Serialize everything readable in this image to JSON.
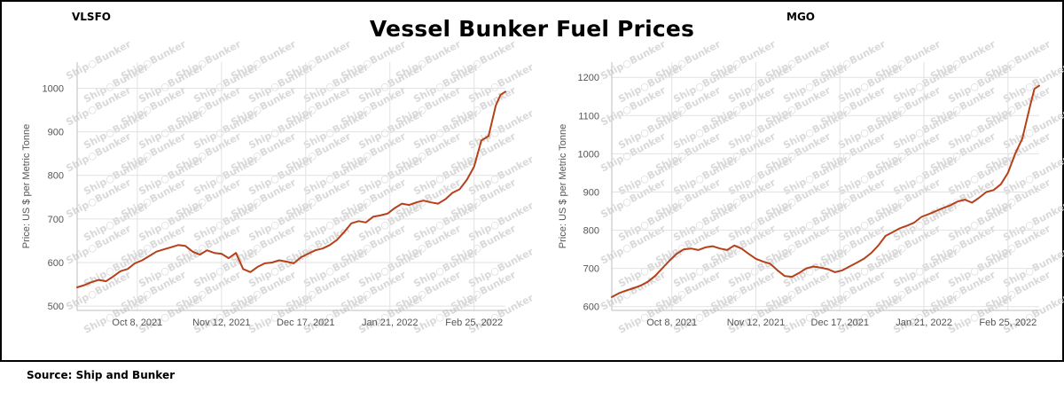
{
  "page": {
    "title": "Vessel Bunker Fuel Prices",
    "source": "Source: Ship and Bunker"
  },
  "colors": {
    "line": "#b5401a",
    "grid": "#e2e2e2",
    "text": "#555555"
  },
  "watermark": "Ship○Bunker",
  "chart_data": [
    {
      "type": "line",
      "title": "VLSFO",
      "ylabel": "Price: US $ per Metric Tonne",
      "ylim": [
        490,
        1060
      ],
      "yticks": [
        500,
        600,
        700,
        800,
        900,
        1000
      ],
      "xlim": [
        "2021-09-13",
        "2022-03-10"
      ],
      "xticks": [
        {
          "date": "2021-10-08",
          "label": "Oct 8, 2021"
        },
        {
          "date": "2021-11-12",
          "label": "Nov 12, 2021"
        },
        {
          "date": "2021-12-17",
          "label": "Dec 17, 2021"
        },
        {
          "date": "2022-01-21",
          "label": "Jan 21, 2022"
        },
        {
          "date": "2022-02-25",
          "label": "Feb 25, 2022"
        }
      ],
      "grid": true,
      "series": [
        {
          "x": [
            "2021-09-13",
            "2021-09-16",
            "2021-09-19",
            "2021-09-22",
            "2021-09-25",
            "2021-09-28",
            "2021-10-01",
            "2021-10-04",
            "2021-10-07",
            "2021-10-10",
            "2021-10-13",
            "2021-10-16",
            "2021-10-19",
            "2021-10-22",
            "2021-10-25",
            "2021-10-28",
            "2021-10-31",
            "2021-11-03",
            "2021-11-06",
            "2021-11-09",
            "2021-11-12",
            "2021-11-15",
            "2021-11-18",
            "2021-11-21",
            "2021-11-24",
            "2021-11-27",
            "2021-11-30",
            "2021-12-03",
            "2021-12-06",
            "2021-12-09",
            "2021-12-12",
            "2021-12-15",
            "2021-12-18",
            "2021-12-21",
            "2021-12-24",
            "2021-12-27",
            "2021-12-30",
            "2022-01-02",
            "2022-01-05",
            "2022-01-08",
            "2022-01-11",
            "2022-01-14",
            "2022-01-17",
            "2022-01-20",
            "2022-01-23",
            "2022-01-26",
            "2022-01-29",
            "2022-02-01",
            "2022-02-04",
            "2022-02-07",
            "2022-02-10",
            "2022-02-13",
            "2022-02-16",
            "2022-02-19",
            "2022-02-22",
            "2022-02-25",
            "2022-02-28",
            "2022-03-03",
            "2022-03-06",
            "2022-03-08",
            "2022-03-10"
          ],
          "y": [
            543,
            548,
            555,
            560,
            557,
            568,
            580,
            585,
            598,
            605,
            615,
            625,
            630,
            635,
            640,
            638,
            625,
            618,
            628,
            622,
            620,
            610,
            622,
            585,
            578,
            590,
            598,
            600,
            605,
            602,
            598,
            612,
            620,
            628,
            632,
            640,
            652,
            670,
            690,
            695,
            692,
            705,
            708,
            712,
            725,
            735,
            732,
            738,
            742,
            738,
            735,
            745,
            760,
            768,
            790,
            820,
            880,
            890,
            960,
            985,
            992
          ]
        }
      ]
    },
    {
      "type": "line",
      "title": "MGO",
      "ylabel": "Price: US $ per Metric Tonne",
      "ylim": [
        590,
        1240
      ],
      "yticks": [
        600,
        700,
        800,
        900,
        1000,
        1100,
        1200
      ],
      "xlim": [
        "2021-09-13",
        "2022-03-10"
      ],
      "xticks": [
        {
          "date": "2021-10-08",
          "label": "Oct 8, 2021"
        },
        {
          "date": "2021-11-12",
          "label": "Nov 12, 2021"
        },
        {
          "date": "2021-12-17",
          "label": "Dec 17, 2021"
        },
        {
          "date": "2022-01-21",
          "label": "Jan 21, 2022"
        },
        {
          "date": "2022-02-25",
          "label": "Feb 25, 2022"
        }
      ],
      "grid": true,
      "series": [
        {
          "x": [
            "2021-09-13",
            "2021-09-16",
            "2021-09-19",
            "2021-09-22",
            "2021-09-25",
            "2021-09-28",
            "2021-10-01",
            "2021-10-04",
            "2021-10-07",
            "2021-10-10",
            "2021-10-13",
            "2021-10-16",
            "2021-10-19",
            "2021-10-22",
            "2021-10-25",
            "2021-10-28",
            "2021-10-31",
            "2021-11-03",
            "2021-11-06",
            "2021-11-09",
            "2021-11-12",
            "2021-11-15",
            "2021-11-18",
            "2021-11-21",
            "2021-11-24",
            "2021-11-27",
            "2021-11-30",
            "2021-12-03",
            "2021-12-06",
            "2021-12-09",
            "2021-12-12",
            "2021-12-15",
            "2021-12-18",
            "2021-12-21",
            "2021-12-24",
            "2021-12-27",
            "2021-12-30",
            "2022-01-02",
            "2022-01-05",
            "2022-01-08",
            "2022-01-11",
            "2022-01-14",
            "2022-01-17",
            "2022-01-20",
            "2022-01-23",
            "2022-01-26",
            "2022-01-29",
            "2022-02-01",
            "2022-02-04",
            "2022-02-07",
            "2022-02-10",
            "2022-02-13",
            "2022-02-16",
            "2022-02-19",
            "2022-02-22",
            "2022-02-25",
            "2022-02-28",
            "2022-03-03",
            "2022-03-06",
            "2022-03-08",
            "2022-03-10"
          ],
          "y": [
            625,
            635,
            642,
            648,
            655,
            665,
            680,
            700,
            720,
            738,
            750,
            752,
            748,
            755,
            758,
            752,
            748,
            760,
            752,
            738,
            725,
            718,
            712,
            695,
            680,
            678,
            688,
            700,
            705,
            702,
            698,
            690,
            695,
            705,
            715,
            725,
            740,
            760,
            785,
            795,
            805,
            812,
            820,
            835,
            842,
            850,
            858,
            865,
            875,
            880,
            872,
            885,
            900,
            905,
            920,
            950,
            1000,
            1040,
            1120,
            1170,
            1178
          ]
        }
      ]
    }
  ]
}
